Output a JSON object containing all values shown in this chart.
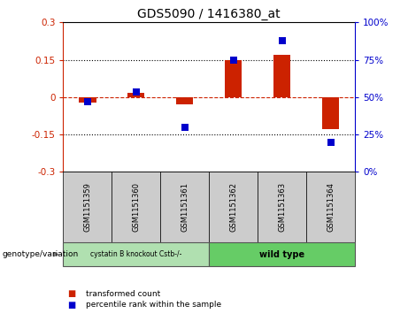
{
  "title": "GDS5090 / 1416380_at",
  "samples": [
    "GSM1151359",
    "GSM1151360",
    "GSM1151361",
    "GSM1151362",
    "GSM1151363",
    "GSM1151364"
  ],
  "red_bars": [
    -0.022,
    0.018,
    -0.03,
    0.15,
    0.17,
    -0.13
  ],
  "blue_dots": [
    0.468,
    0.536,
    0.3,
    0.75,
    0.876,
    0.196
  ],
  "ylim": [
    -0.3,
    0.3
  ],
  "yticks_left": [
    -0.3,
    -0.15,
    0.0,
    0.15,
    0.3
  ],
  "yticks_right_vals": [
    0,
    25,
    50,
    75,
    100
  ],
  "hlines_dotted": [
    -0.15,
    0.15
  ],
  "hline_red_dashed": 0.0,
  "group1_label": "cystatin B knockout Cstb-/-",
  "group2_label": "wild type",
  "group1_color": "#b0e0b0",
  "group2_color": "#66cc66",
  "sample_box_color": "#cccccc",
  "bar_color": "#cc2200",
  "dot_color": "#0000cc",
  "legend_red_label": "transformed count",
  "legend_blue_label": "percentile rank within the sample",
  "ylabel_left_color": "#cc2200",
  "ylabel_right_color": "#0000cc",
  "bar_width": 0.35,
  "dot_size": 28,
  "title_fontsize": 10,
  "tick_fontsize": 7.5,
  "label_fontsize": 7
}
